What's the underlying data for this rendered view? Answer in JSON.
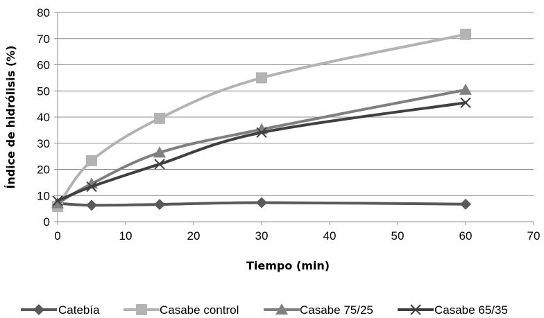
{
  "chart_data": {
    "type": "line",
    "title": "",
    "xlabel": "Tiempo (min)",
    "ylabel": "Índice de hidrólisis (%)",
    "xlim": [
      0,
      70
    ],
    "ylim": [
      0,
      80
    ],
    "xticks": [
      0,
      10,
      20,
      30,
      40,
      50,
      60,
      70
    ],
    "yticks": [
      0,
      10,
      20,
      30,
      40,
      50,
      60,
      70,
      80
    ],
    "grid": "horizontal",
    "legend_position": "bottom",
    "x": [
      0,
      5,
      15,
      30,
      60
    ],
    "series": [
      {
        "name": "Catebía",
        "values": [
          7,
          6.3,
          6.6,
          7.3,
          6.7
        ],
        "color": "#595959",
        "marker": "diamond"
      },
      {
        "name": "Casabe control",
        "values": [
          5.8,
          23.3,
          39.5,
          55,
          71.6
        ],
        "color": "#b3b3b3",
        "marker": "square"
      },
      {
        "name": "Casabe 75/25",
        "values": [
          7,
          14.5,
          26.4,
          35.3,
          50.4
        ],
        "color": "#808080",
        "marker": "triangle"
      },
      {
        "name": "Casabe 65/35",
        "values": [
          8,
          13.4,
          22,
          34.1,
          45.5
        ],
        "color": "#404040",
        "marker": "x"
      }
    ]
  }
}
